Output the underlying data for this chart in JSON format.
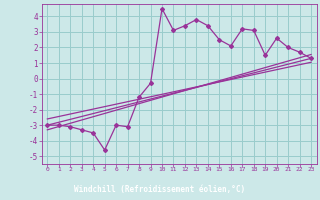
{
  "bg_color": "#cce8e8",
  "plot_bg_color": "#cce8e8",
  "xlabel_bg": "#7b5c8a",
  "line_color": "#993399",
  "grid_color": "#99cccc",
  "xlabel": "Windchill (Refroidissement éolien,°C)",
  "xlim": [
    -0.5,
    23.5
  ],
  "ylim": [
    -5.5,
    4.8
  ],
  "yticks": [
    -5,
    -4,
    -3,
    -2,
    -1,
    0,
    1,
    2,
    3,
    4
  ],
  "xticks": [
    0,
    1,
    2,
    3,
    4,
    5,
    6,
    7,
    8,
    9,
    10,
    11,
    12,
    13,
    14,
    15,
    16,
    17,
    18,
    19,
    20,
    21,
    22,
    23
  ],
  "data_x": [
    0,
    1,
    2,
    3,
    4,
    5,
    6,
    7,
    8,
    9,
    10,
    11,
    12,
    13,
    14,
    15,
    16,
    17,
    18,
    19,
    20,
    21,
    22,
    23
  ],
  "data_y": [
    -3.0,
    -3.0,
    -3.1,
    -3.3,
    -3.5,
    -4.6,
    -3.0,
    -3.1,
    -1.2,
    -0.3,
    4.5,
    3.1,
    3.4,
    3.8,
    3.4,
    2.5,
    2.1,
    3.2,
    3.1,
    1.5,
    2.6,
    2.0,
    1.7,
    1.3
  ],
  "line1_x": [
    0,
    23
  ],
  "line1_y": [
    -3.0,
    1.3
  ],
  "line2_x": [
    0,
    23
  ],
  "line2_y": [
    -2.6,
    1.05
  ],
  "line3_x": [
    0,
    23
  ],
  "line3_y": [
    -3.3,
    1.55
  ]
}
